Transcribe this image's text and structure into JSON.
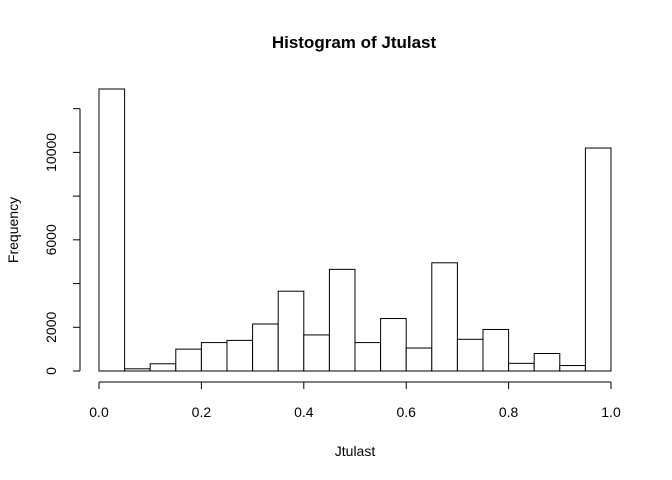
{
  "chart_data": {
    "type": "bar",
    "title": "Histogram of Jtulast",
    "xlabel": "Jtulast",
    "ylabel": "Frequency",
    "bin_edges": [
      0.0,
      0.05,
      0.1,
      0.15,
      0.2,
      0.25,
      0.3,
      0.35,
      0.4,
      0.45,
      0.5,
      0.55,
      0.6,
      0.65,
      0.7,
      0.75,
      0.8,
      0.85,
      0.9,
      0.95,
      1.0
    ],
    "values": [
      12900,
      100,
      330,
      1000,
      1300,
      1400,
      2150,
      3650,
      1650,
      4650,
      1300,
      2400,
      1050,
      4950,
      1450,
      1900,
      350,
      800,
      250,
      10200
    ],
    "xlim": [
      0.0,
      1.0
    ],
    "ylim": [
      0,
      12900
    ],
    "x_ticks": [
      0.0,
      0.2,
      0.4,
      0.6,
      0.8,
      1.0
    ],
    "x_tick_labels": [
      "0.0",
      "0.2",
      "0.4",
      "0.6",
      "0.8",
      "1.0"
    ],
    "y_ticks": [
      0,
      2000,
      6000,
      10000
    ],
    "y_minor_ticks": [
      4000,
      8000,
      12000
    ],
    "y_tick_labels": [
      "0",
      "2000",
      "6000",
      "10000"
    ],
    "grid": false,
    "colors": {
      "bar_fill": "#ffffff",
      "bar_stroke": "#000000"
    }
  }
}
